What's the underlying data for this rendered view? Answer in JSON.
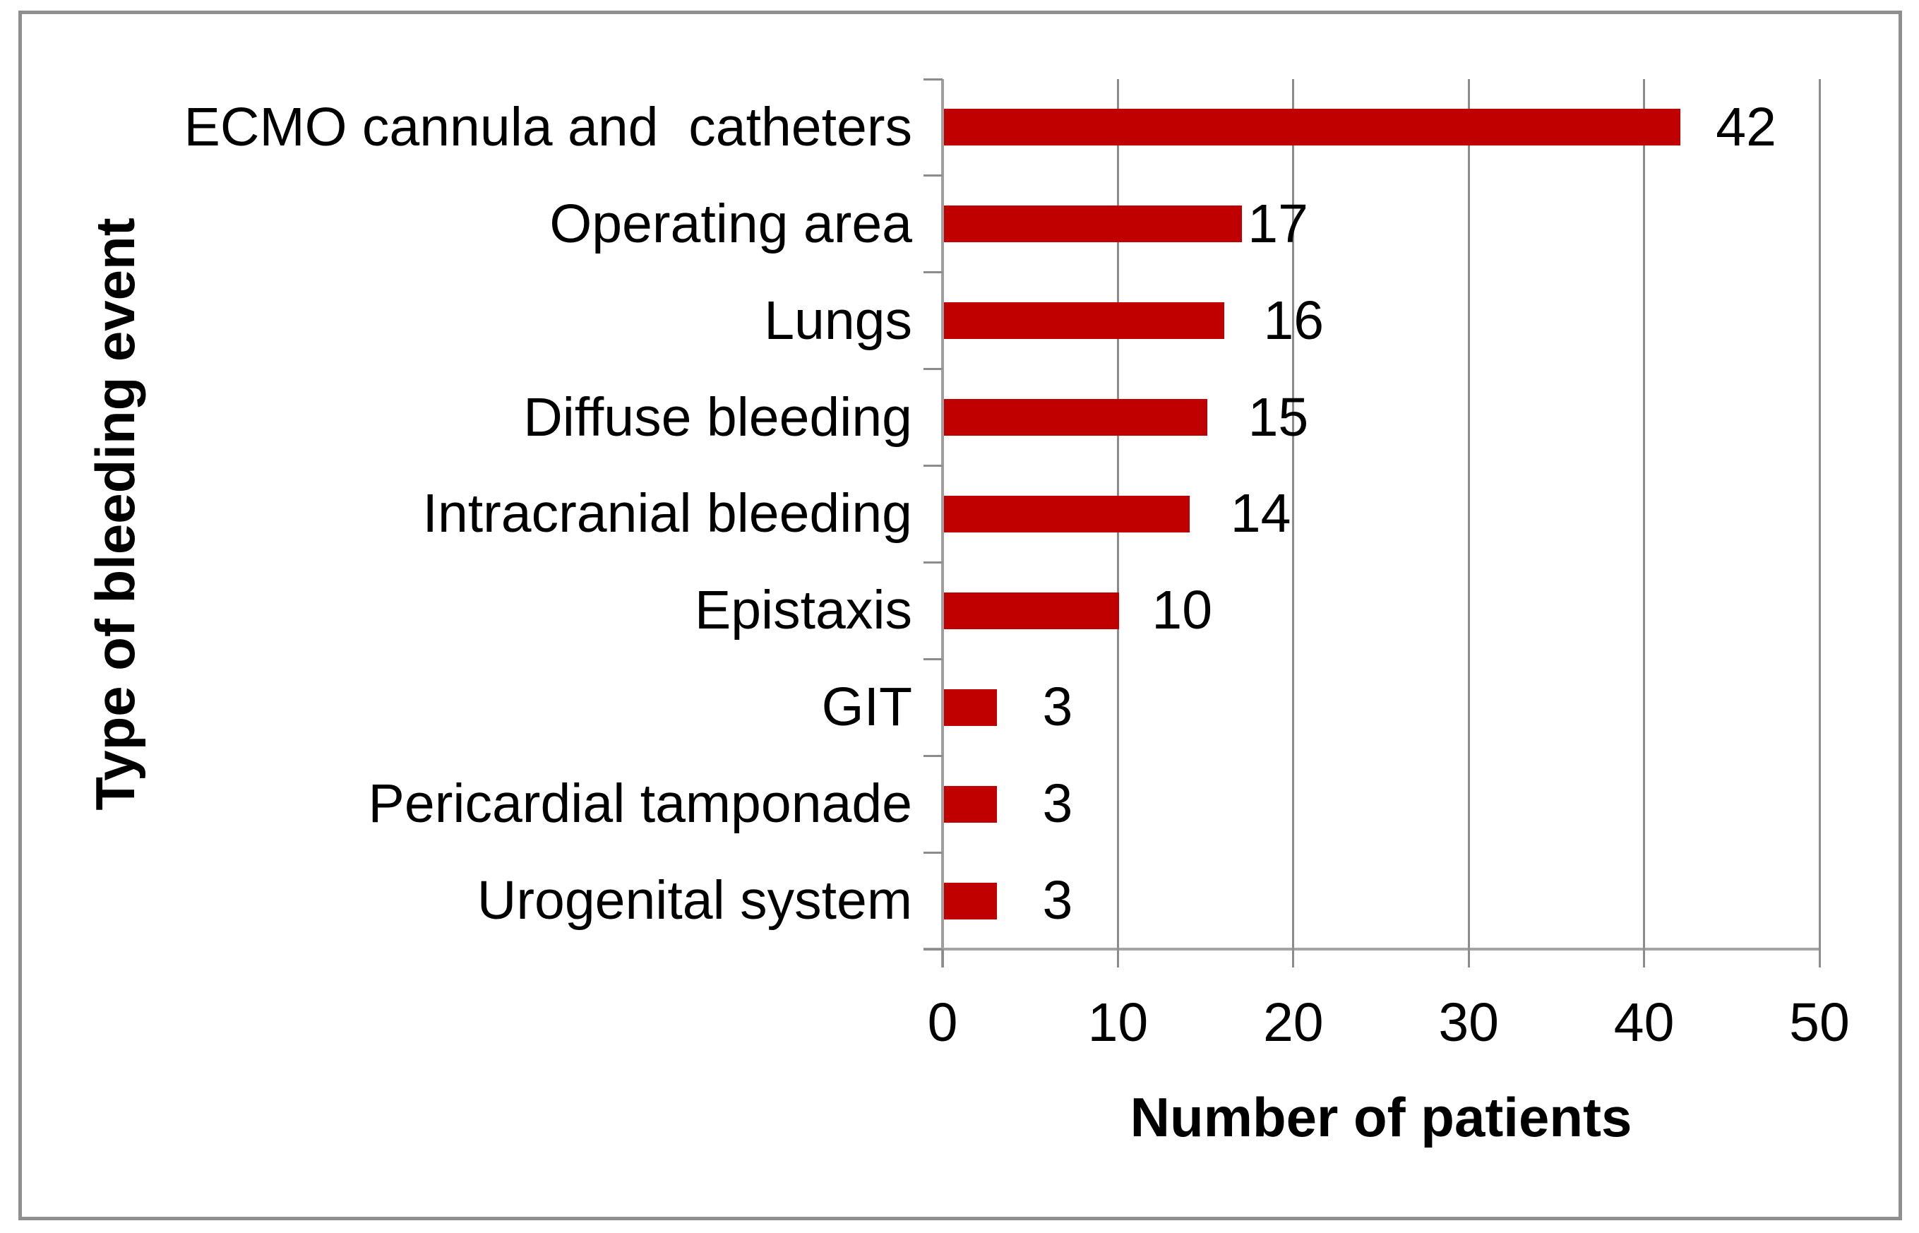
{
  "figure": {
    "background_color": "#ffffff",
    "border_color": "#8f8f8f"
  },
  "chart_data": {
    "type": "bar",
    "orientation": "horizontal",
    "title": "",
    "xlabel": "Number of patients",
    "ylabel": "Type of bleeding event",
    "categories": [
      "ECMO cannula and  catheters",
      "Operating area",
      "Lungs",
      "Diffuse bleeding",
      "Intracranial bleeding",
      "Epistaxis",
      "GIT",
      "Pericardial tamponade",
      "Urogenital system"
    ],
    "values": [
      42,
      17,
      16,
      15,
      14,
      10,
      3,
      3,
      3
    ],
    "data_labels": [
      "42",
      "17",
      "16",
      "15",
      "14",
      "10",
      "3",
      "3",
      "3"
    ],
    "xlim": [
      0,
      50
    ],
    "xticks": [
      0,
      10,
      20,
      30,
      40,
      50
    ],
    "grid": true,
    "legend": "none",
    "bar_color": "#c00000",
    "gridline_color": "#8c8c8c",
    "axis_line_color": "#9e9e9e",
    "text_color": "#000000"
  }
}
